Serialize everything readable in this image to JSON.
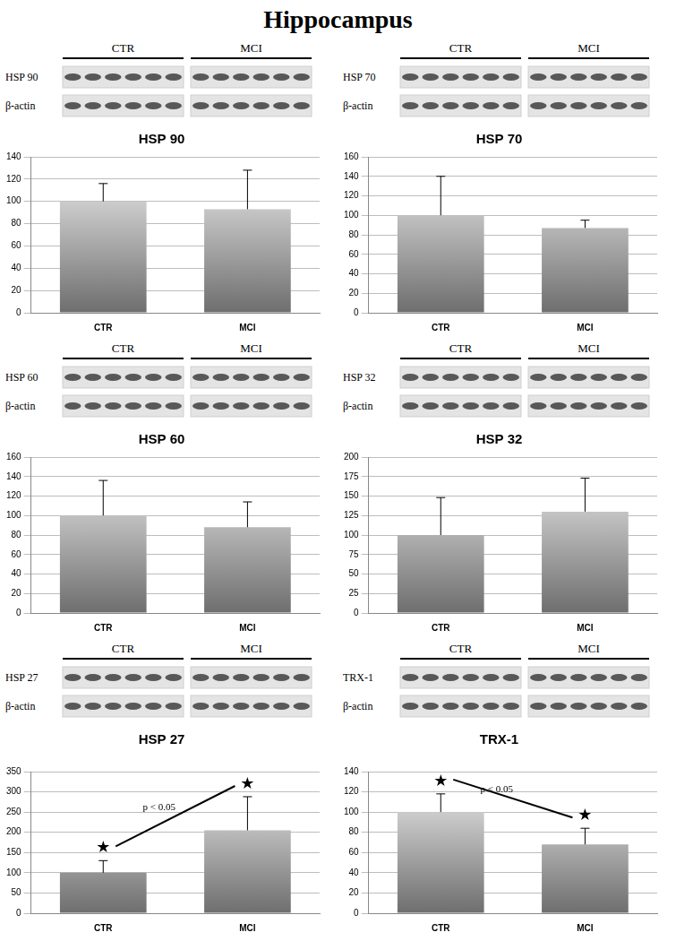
{
  "title": "Hippocampus",
  "chart_data": [
    {
      "type": "bar",
      "title": "HSP 90",
      "categories": [
        "CTR",
        "MCI"
      ],
      "values": [
        100,
        93
      ],
      "errors": [
        16,
        35
      ],
      "color": "#6e6e6e",
      "ylim": [
        0,
        140
      ],
      "yticks": [
        0,
        20,
        40,
        60,
        80,
        100,
        120,
        140
      ],
      "grid": true,
      "blot": {
        "groups": [
          "CTR",
          "MCI"
        ],
        "bands": [
          "HSP 90",
          "β-actin"
        ]
      }
    },
    {
      "type": "bar",
      "title": "HSP 70",
      "categories": [
        "CTR",
        "MCI"
      ],
      "values": [
        100,
        87
      ],
      "errors": [
        40,
        8
      ],
      "color": "#6e6e6e",
      "ylim": [
        0,
        160
      ],
      "yticks": [
        0,
        20,
        40,
        60,
        80,
        100,
        120,
        140,
        160
      ],
      "grid": true,
      "blot": {
        "groups": [
          "CTR",
          "MCI"
        ],
        "bands": [
          "HSP 70",
          "β-actin"
        ]
      }
    },
    {
      "type": "bar",
      "title": "HSP 60",
      "categories": [
        "CTR",
        "MCI"
      ],
      "values": [
        100,
        88
      ],
      "errors": [
        36,
        26
      ],
      "color": "#6e6e6e",
      "ylim": [
        0,
        160
      ],
      "yticks": [
        0,
        20,
        40,
        60,
        80,
        100,
        120,
        140,
        160
      ],
      "grid": true,
      "blot": {
        "groups": [
          "CTR",
          "MCI"
        ],
        "bands": [
          "HSP 60",
          "β-actin"
        ]
      }
    },
    {
      "type": "bar",
      "title": "HSP 32",
      "categories": [
        "CTR",
        "MCI"
      ],
      "values": [
        100,
        130
      ],
      "errors": [
        48,
        43
      ],
      "color": "#6e6e6e",
      "ylim": [
        0,
        200
      ],
      "yticks": [
        0,
        25,
        50,
        75,
        100,
        125,
        150,
        175,
        200
      ],
      "grid": true,
      "blot": {
        "groups": [
          "CTR",
          "MCI"
        ],
        "bands": [
          "HSP 32",
          "β-actin"
        ]
      }
    },
    {
      "type": "bar",
      "title": "HSP 27",
      "categories": [
        "CTR",
        "MCI"
      ],
      "values": [
        100,
        205
      ],
      "errors": [
        30,
        83
      ],
      "color": "#6e6e6e",
      "ylim": [
        0,
        350
      ],
      "yticks": [
        0,
        50,
        100,
        150,
        200,
        250,
        300,
        350
      ],
      "grid": true,
      "significance": {
        "label": "p < 0.05",
        "symbol": "★"
      },
      "blot": {
        "groups": [
          "CTR",
          "MCI"
        ],
        "bands": [
          "HSP 27",
          "β-actin"
        ]
      }
    },
    {
      "type": "bar",
      "title": "TRX-1",
      "categories": [
        "CTR",
        "MCI"
      ],
      "values": [
        100,
        68
      ],
      "errors": [
        18,
        16
      ],
      "color": "#6e6e6e",
      "ylim": [
        0,
        140
      ],
      "yticks": [
        0,
        20,
        40,
        60,
        80,
        100,
        120,
        140
      ],
      "grid": true,
      "significance": {
        "label": "p < 0.05",
        "symbol": "★"
      },
      "blot": {
        "groups": [
          "CTR",
          "MCI"
        ],
        "bands": [
          "TRX-1",
          "β-actin"
        ]
      }
    }
  ]
}
